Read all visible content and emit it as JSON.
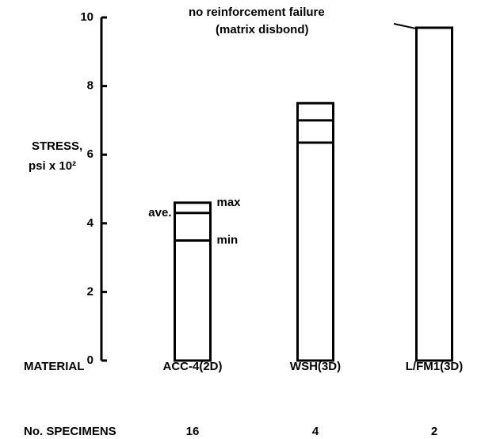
{
  "chart_data": {
    "type": "bar",
    "ylabel": [
      "STRESS,",
      "psi x 10²"
    ],
    "categories": [
      "ACC-4(2D)",
      "WSH(3D)",
      "L/FM1(3D)"
    ],
    "values": [
      4.6,
      7.5,
      9.7
    ],
    "ave": [
      4.3,
      7.0,
      null
    ],
    "min": [
      3.5,
      6.35,
      null
    ],
    "color": "#000000",
    "ylim": [
      0,
      10
    ],
    "yticks": [
      0,
      2,
      4,
      6,
      8,
      10
    ],
    "annotations": {
      "max": "max",
      "ave": "ave.",
      "min": "min",
      "note": [
        "no reinforcement failure",
        "(matrix disbond)"
      ]
    },
    "row_labels": {
      "material": "MATERIAL",
      "specimens": "No. SPECIMENS"
    },
    "specimens": [
      16,
      4,
      2
    ]
  }
}
